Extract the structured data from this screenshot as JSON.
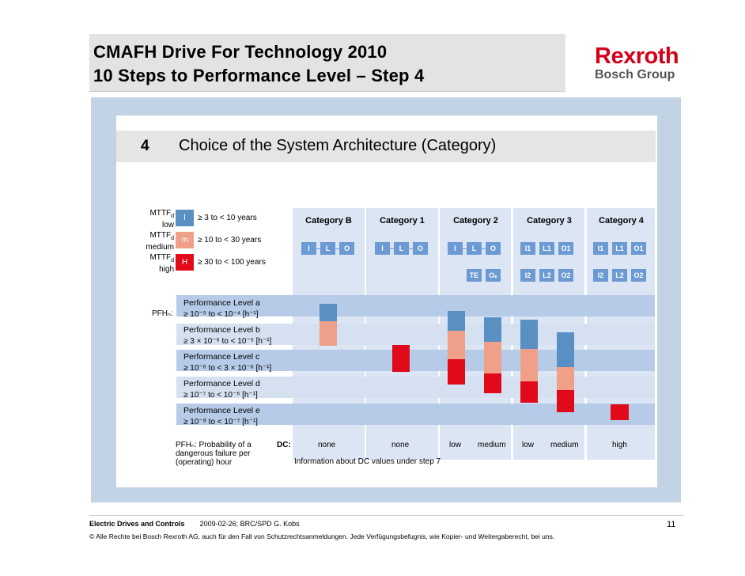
{
  "header": {
    "title_line1": "CMAFH Drive For Technology 2010",
    "title_line2": "10 Steps to Performance Level – Step 4",
    "logo_main": "Rexroth",
    "logo_sub": "Bosch Group"
  },
  "slide": {
    "step_number": "4",
    "step_title": "Choice of the System Architecture (Category)",
    "mttf": [
      {
        "label_top": "MTTF",
        "label_sub": "d",
        "label_bottom": "low",
        "code": "l",
        "range": "≥ 3 to < 10 years",
        "color": "#5a8fc3"
      },
      {
        "label_top": "MTTF",
        "label_sub": "d",
        "label_bottom": "medium",
        "code": "m",
        "range": "≥ 10 to < 30 years",
        "color": "#f0a088"
      },
      {
        "label_top": "MTTF",
        "label_sub": "d",
        "label_bottom": "high",
        "code": "H",
        "range": "≥ 30 to < 100 years",
        "color": "#e00a1a"
      }
    ],
    "categories": [
      {
        "title": "Category B",
        "row1": [
          "I",
          "L",
          "O"
        ],
        "row2": []
      },
      {
        "title": "Category 1",
        "row1": [
          "I",
          "L",
          "O"
        ],
        "row2": []
      },
      {
        "title": "Category 2",
        "row1": [
          "I",
          "L",
          "O"
        ],
        "row2": [
          "TE",
          "Oₑ"
        ]
      },
      {
        "title": "Category 3",
        "row1": [
          "I1",
          "L1",
          "O1"
        ],
        "row2": [
          "I2",
          "L2",
          "O2"
        ]
      },
      {
        "title": "Category 4",
        "row1": [
          "I1",
          "L1",
          "O1"
        ],
        "row2": [
          "I2",
          "L2",
          "O2"
        ]
      }
    ],
    "pfh_label": "PFHₙ:",
    "performance_levels": [
      {
        "name": "Performance Level a",
        "range": "≥ 10⁻⁵ to < 10⁻⁴  [h⁻¹]"
      },
      {
        "name": "Performance Level b",
        "range": "≥ 3 × 10⁻⁶ to < 10⁻⁵  [h⁻¹]"
      },
      {
        "name": "Performance Level c",
        "range": "≥ 10⁻⁶ to < 3 × 10⁻⁶  [h⁻¹]"
      },
      {
        "name": "Performance Level d",
        "range": "≥ 10⁻⁷ to < 10⁻⁶  [h⁻¹]"
      },
      {
        "name": "Performance Level e",
        "range": "≥ 10⁻⁸ to < 10⁻⁷  [h⁻¹]"
      }
    ],
    "pfh_definition": "PFHₙ:  Probability of a dangerous failure per (operating) hour",
    "dc_heading": "DC:",
    "dc_values": [
      "none",
      "none",
      "low",
      "medium",
      "low",
      "medium",
      "high"
    ],
    "dc_info": "Information about DC values under step 7",
    "bars": [
      {
        "category": "Category B",
        "dc": "none",
        "segments": [
          {
            "mttf": "low"
          },
          {
            "mttf": "medium"
          }
        ]
      },
      {
        "category": "Category 1",
        "dc": "none",
        "segments": [
          {
            "mttf": "high"
          }
        ]
      },
      {
        "category": "Category 2",
        "dc": "low",
        "segments": [
          {
            "mttf": "low"
          },
          {
            "mttf": "medium"
          },
          {
            "mttf": "high"
          }
        ]
      },
      {
        "category": "Category 2",
        "dc": "medium",
        "segments": [
          {
            "mttf": "low"
          },
          {
            "mttf": "medium"
          },
          {
            "mttf": "high"
          }
        ]
      },
      {
        "category": "Category 3",
        "dc": "low",
        "segments": [
          {
            "mttf": "low"
          },
          {
            "mttf": "medium"
          },
          {
            "mttf": "high"
          }
        ]
      },
      {
        "category": "Category 3",
        "dc": "medium",
        "segments": [
          {
            "mttf": "low"
          },
          {
            "mttf": "medium"
          },
          {
            "mttf": "high"
          }
        ]
      },
      {
        "category": "Category 4",
        "dc": "high",
        "segments": [
          {
            "mttf": "high"
          }
        ]
      }
    ]
  },
  "footer": {
    "division": "Electric Drives and Controls",
    "meta": "2009-02-26;  BRC/SPD  G. Kobs",
    "copyright": "© Alle Rechte bei Bosch Rexroth AG, auch für den Fall von Schutzrechtsanmeldungen. Jede Verfügungsbefugnis, wie Kopier- und Weitergaberecht, bei uns.",
    "page_number": "11"
  }
}
